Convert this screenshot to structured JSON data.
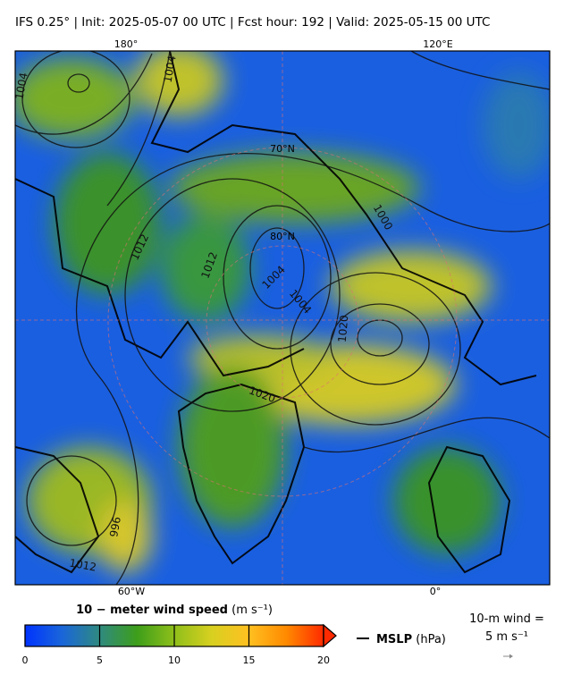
{
  "header": {
    "title": "IFS 0.25°  |  Init: 2025-05-07 00 UTC  |  Fcst hour: 192  |  Valid: 2025-05-15 00 UTC"
  },
  "graticule": {
    "top": [
      "180°",
      "120°E"
    ],
    "bottom": [
      "60°W",
      "0°"
    ],
    "inner": [
      "70°N",
      "80°N"
    ]
  },
  "contour_labels": [
    "1004",
    "1004",
    "1004",
    "1004",
    "1012",
    "1012",
    "1012",
    "996",
    "1020",
    "1020",
    "1000"
  ],
  "colorbar": {
    "title": "10 − meter wind speed",
    "unit": "(m s⁻¹)",
    "lim": [
      0,
      20
    ],
    "ticks": [
      0,
      5,
      10,
      15,
      20
    ],
    "colors": [
      "#0033ff",
      "#1a66d9",
      "#2f8a80",
      "#3d9e1a",
      "#8fbf1a",
      "#d8d020",
      "#ffc020",
      "#ff8a00",
      "#ff2a00"
    ]
  },
  "mslp_legend": {
    "name": "MSLP",
    "unit": "(hPa)"
  },
  "wind_legend": {
    "label": "10-m wind =",
    "value": "5 m s⁻¹"
  }
}
